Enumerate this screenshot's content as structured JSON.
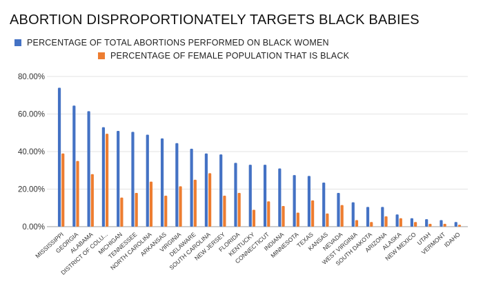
{
  "chart_data": {
    "type": "bar",
    "title": "ABORTION DISPROPORTIONATELY TARGETS BLACK BABIES",
    "xlabel": "",
    "ylabel": "",
    "ylim": [
      0,
      80
    ],
    "yticks": [
      "0.00%",
      "20.00%",
      "40.00%",
      "60.00%",
      "80.00%"
    ],
    "grid": true,
    "legend_position": "top-left",
    "categories": [
      "MISSISSIPPI",
      "GEORGIA",
      "ALABAMA",
      "DISTRICT OF COLU...",
      "MICHIGAN",
      "TENNESSEE",
      "NORTH CAROLINA",
      "ARKANSAS",
      "VIRGINIA",
      "DELAWARE",
      "SOUTH CAROLINA",
      "NEW JERSEY",
      "FLORIDA",
      "KENTUCKY",
      "CONNECTICUT",
      "INDIANA",
      "MINNESOTA",
      "TEXAS",
      "KANSAS",
      "NEVADA",
      "WEST VIRGINIA",
      "SOUTH DAKOTA",
      "ARIZONA",
      "ALASKA",
      "NEW MEXICO",
      "UTAH",
      "VERMONT",
      "IDAHO"
    ],
    "series": [
      {
        "name": "PERCENTAGE OF TOTAL ABORTIONS PERFORMED ON BLACK WOMEN",
        "color": "#4472c4",
        "values": [
          74,
          64.5,
          61.5,
          53,
          51,
          50.5,
          49,
          47,
          44.5,
          41.5,
          39,
          38.5,
          34,
          33,
          33,
          31,
          27.5,
          27,
          23.5,
          18,
          13,
          10.5,
          10.5,
          6.5,
          4.5,
          4,
          3.5,
          2.5
        ]
      },
      {
        "name": "PERCENTAGE OF FEMALE POPULATION THAT IS BLACK",
        "color": "#ed7d31",
        "values": [
          39,
          35,
          28,
          49.5,
          15.5,
          18,
          24,
          16.5,
          21.5,
          25,
          28.5,
          16.5,
          18,
          9,
          13.5,
          11,
          7.5,
          14,
          7,
          11.5,
          3.5,
          2.5,
          5.5,
          4.5,
          2.5,
          1.5,
          1.5,
          1
        ]
      }
    ]
  }
}
